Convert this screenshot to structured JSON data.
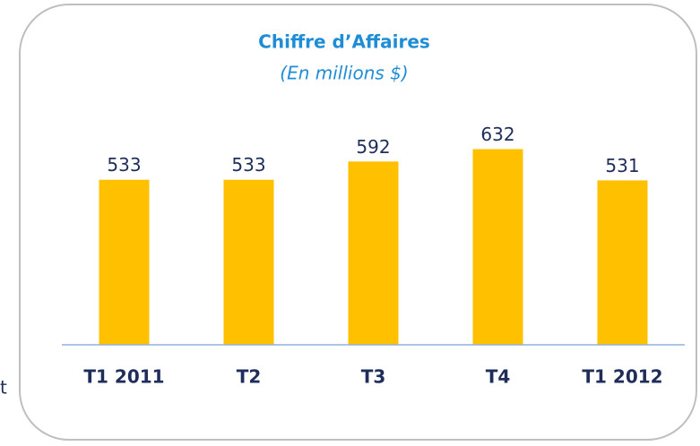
{
  "chart_data": {
    "type": "bar",
    "title": "Chiffre d’Affaires",
    "subtitle": "(En millions $)",
    "categories": [
      "T1 2011",
      "T2",
      "T3",
      "T4",
      "T1 2012"
    ],
    "values": [
      533,
      533,
      592,
      632,
      531
    ],
    "color": "#ffc000",
    "ylim": [
      0,
      700
    ],
    "annotation": "t"
  }
}
